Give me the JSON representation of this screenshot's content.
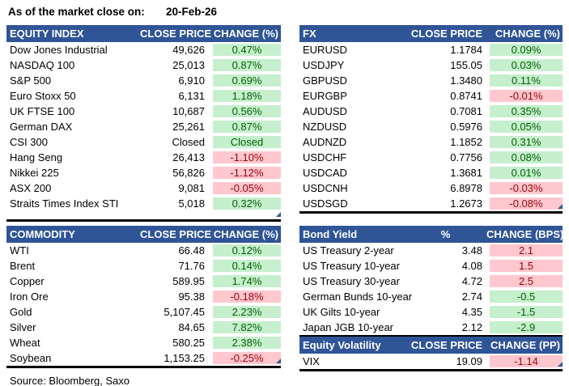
{
  "meta": {
    "as_of_label": "As of the market close on:",
    "as_of_date": "20-Feb-26",
    "source": "Source: Bloomberg, Saxo"
  },
  "colors": {
    "header_bg": "#2F5597",
    "header_text": "#FFFFFF",
    "positive_bg": "#C6EFCE",
    "positive_text": "#006100",
    "negative_bg": "#FFC7CE",
    "negative_text": "#9C0006"
  },
  "tables": {
    "equity_index": {
      "title": "EQUITY INDEX",
      "price_header": "CLOSE PRICE",
      "change_header": "CHANGE (%)",
      "rows": [
        {
          "name": "Dow Jones Industrial",
          "price": "49,626",
          "change": "0.47%",
          "tone": "green"
        },
        {
          "name": "NASDAQ 100",
          "price": "25,013",
          "change": "0.87%",
          "tone": "green"
        },
        {
          "name": "S&P 500",
          "price": "6,910",
          "change": "0.69%",
          "tone": "green"
        },
        {
          "name": "Euro Stoxx 50",
          "price": "6,131",
          "change": "1.18%",
          "tone": "green"
        },
        {
          "name": "UK FTSE 100",
          "price": "10,687",
          "change": "0.56%",
          "tone": "green"
        },
        {
          "name": "German DAX",
          "price": "25,261",
          "change": "0.87%",
          "tone": "green"
        },
        {
          "name": "CSI 300",
          "price": "Closed",
          "change": "Closed",
          "tone": "green"
        },
        {
          "name": "Hang Seng",
          "price": "26,413",
          "change": "-1.10%",
          "tone": "red"
        },
        {
          "name": "Nikkei 225",
          "price": "56,826",
          "change": "-1.12%",
          "tone": "red"
        },
        {
          "name": "ASX 200",
          "price": "9,081",
          "change": "-0.05%",
          "tone": "red"
        },
        {
          "name": "Straits Times Index STI",
          "price": "5,018",
          "change": "0.32%",
          "tone": "green"
        }
      ]
    },
    "fx": {
      "title": "FX",
      "price_header": "CLOSE PRICE",
      "change_header": "CHANGE (%)",
      "rows": [
        {
          "name": "EURUSD",
          "price": "1.1784",
          "change": "0.09%",
          "tone": "green"
        },
        {
          "name": "USDJPY",
          "price": "155.05",
          "change": "0.03%",
          "tone": "green"
        },
        {
          "name": "GBPUSD",
          "price": "1.3480",
          "change": "0.11%",
          "tone": "green"
        },
        {
          "name": "EURGBP",
          "price": "0.8741",
          "change": "-0.01%",
          "tone": "red"
        },
        {
          "name": "AUDUSD",
          "price": "0.7081",
          "change": "0.35%",
          "tone": "green"
        },
        {
          "name": "NZDUSD",
          "price": "0.5976",
          "change": "0.05%",
          "tone": "green"
        },
        {
          "name": "AUDNZD",
          "price": "1.1852",
          "change": "0.31%",
          "tone": "green"
        },
        {
          "name": "USDCHF",
          "price": "0.7756",
          "change": "0.08%",
          "tone": "green"
        },
        {
          "name": "USDCAD",
          "price": "1.3681",
          "change": "0.01%",
          "tone": "green"
        },
        {
          "name": "USDCNH",
          "price": "6.8978",
          "change": "-0.03%",
          "tone": "red"
        },
        {
          "name": "USDSGD",
          "price": "1.2673",
          "change": "-0.08%",
          "tone": "red"
        }
      ]
    },
    "commodity": {
      "title": "COMMODITY",
      "price_header": "CLOSE PRICE",
      "change_header": "CHANGE (%)",
      "rows": [
        {
          "name": "WTI",
          "price": "66.48",
          "change": "0.12%",
          "tone": "green"
        },
        {
          "name": "Brent",
          "price": "71.76",
          "change": "0.14%",
          "tone": "green"
        },
        {
          "name": "Copper",
          "price": "589.95",
          "change": "1.74%",
          "tone": "green"
        },
        {
          "name": "Iron Ore",
          "price": "95.38",
          "change": "-0.18%",
          "tone": "red"
        },
        {
          "name": "Gold",
          "price": "5,107.45",
          "change": "2.23%",
          "tone": "green"
        },
        {
          "name": "Silver",
          "price": "84.65",
          "change": "7.82%",
          "tone": "green"
        },
        {
          "name": "Wheat",
          "price": "580.25",
          "change": "2.38%",
          "tone": "green"
        },
        {
          "name": "Soybean",
          "price": "1,153.25",
          "change": "-0.25%",
          "tone": "red"
        }
      ]
    },
    "bond_yield": {
      "title": "Bond Yield",
      "price_header": "%",
      "change_header": "CHANGE (BPS)",
      "rows": [
        {
          "name": "US Treasury 2-year",
          "price": "3.48",
          "change": "2.1",
          "tone": "red"
        },
        {
          "name": "US Treasury 10-year",
          "price": "4.08",
          "change": "1.5",
          "tone": "red"
        },
        {
          "name": "US Treasury 30-year",
          "price": "4.72",
          "change": "2.5",
          "tone": "red"
        },
        {
          "name": "German Bunds 10-year",
          "price": "2.74",
          "change": "-0.5",
          "tone": "green"
        },
        {
          "name": "UK Gilts 10-year",
          "price": "4.35",
          "change": "-1.5",
          "tone": "green"
        },
        {
          "name": "Japan JGB 10-year",
          "price": "2.12",
          "change": "-2.9",
          "tone": "green"
        }
      ]
    },
    "equity_volatility": {
      "title": "Equity Volatility",
      "price_header": "CLOSE PRICE",
      "change_header": "CHANGE (PP)",
      "rows": [
        {
          "name": "VIX",
          "price": "19.09",
          "change": "-1.14",
          "tone": "red"
        }
      ]
    }
  }
}
